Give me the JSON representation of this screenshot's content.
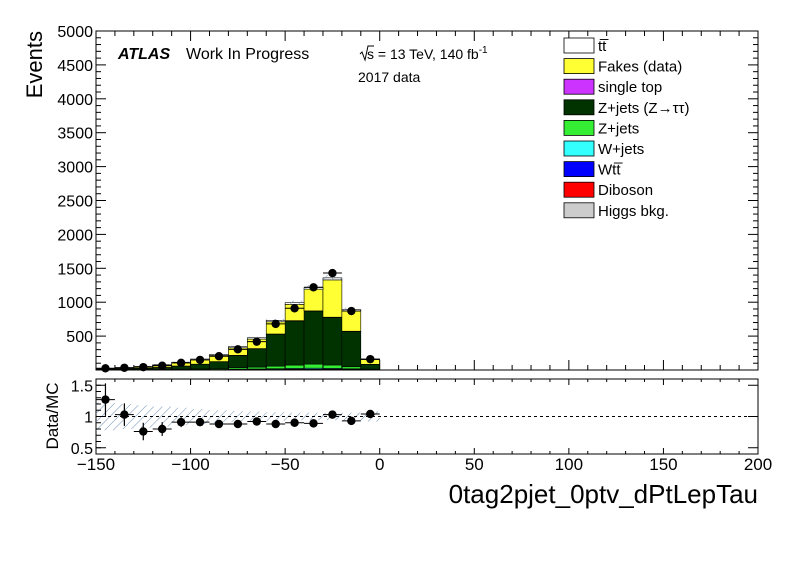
{
  "chart_data": [
    {
      "type": "bar",
      "stacked": true,
      "xlabel": "0tag2pjet_0ptv_dPtLepTau",
      "ylabel": "Events",
      "xlim": [
        -150,
        200
      ],
      "ylim": [
        0,
        5000
      ],
      "x_ticks": [
        "−150",
        "−100",
        "−50",
        "0",
        "50",
        "100",
        "150",
        "200"
      ],
      "x_tick_values": [
        -150,
        -100,
        -50,
        0,
        50,
        100,
        150,
        200
      ],
      "y_ticks": [
        "500",
        "1000",
        "1500",
        "2000",
        "2500",
        "3000",
        "3500",
        "4000",
        "4500",
        "5000"
      ],
      "y_tick_values": [
        500,
        1000,
        1500,
        2000,
        2500,
        3000,
        3500,
        4000,
        4500,
        5000
      ],
      "annotations": {
        "atlas": "ATLAS",
        "status": "Work In Progress",
        "sqrt_s": "s",
        "lumi": " = 13 TeV, 140 fb",
        "lumi_exp": "-1",
        "period": "2017 data"
      },
      "legend_placement": "top-right",
      "legend": [
        {
          "label": "tt̅",
          "color": "#ffffff"
        },
        {
          "label": "Fakes (data)",
          "color": "#ffff33"
        },
        {
          "label": "single top",
          "color": "#cc33ff"
        },
        {
          "label": "Z+jets (Z→ττ)",
          "color": "#003300"
        },
        {
          "label": "Z+jets",
          "color": "#33ee33"
        },
        {
          "label": "W+jets",
          "color": "#33ffff"
        },
        {
          "label": "Wtt̅",
          "color": "#0000ff"
        },
        {
          "label": "Diboson",
          "color": "#ff0000"
        },
        {
          "label": "Higgs bkg.",
          "color": "#cccccc"
        }
      ],
      "bin_edges": [
        -150,
        -140,
        -130,
        -120,
        -110,
        -100,
        -90,
        -80,
        -70,
        -60,
        -50,
        -40,
        -30,
        -20,
        -10,
        0
      ],
      "series": [
        {
          "name": "Higgs bkg.",
          "color": "#cccccc",
          "values": [
            0,
            0,
            0,
            0,
            0,
            0,
            0,
            2,
            2,
            3,
            4,
            5,
            5,
            4,
            1
          ]
        },
        {
          "name": "Diboson",
          "color": "#ff0000",
          "values": [
            1,
            1,
            1,
            1,
            2,
            2,
            3,
            4,
            4,
            5,
            6,
            7,
            6,
            5,
            2
          ]
        },
        {
          "name": "Wtt̅",
          "color": "#0000ff",
          "values": [
            0,
            0,
            0,
            0,
            0,
            0,
            0,
            1,
            1,
            1,
            1,
            1,
            1,
            1,
            0
          ]
        },
        {
          "name": "W+jets",
          "color": "#33ffff",
          "values": [
            1,
            1,
            2,
            2,
            3,
            4,
            5,
            7,
            8,
            10,
            12,
            14,
            12,
            8,
            2
          ]
        },
        {
          "name": "Z+jets",
          "color": "#33ee33",
          "values": [
            2,
            3,
            4,
            6,
            8,
            10,
            14,
            20,
            28,
            38,
            50,
            60,
            50,
            30,
            8
          ]
        },
        {
          "name": "Z+jets (Z→ττ)",
          "color": "#003300",
          "values": [
            8,
            12,
            18,
            28,
            45,
            68,
            100,
            180,
            270,
            470,
            650,
            780,
            700,
            520,
            70
          ]
        },
        {
          "name": "single top",
          "color": "#cc33ff",
          "values": [
            1,
            1,
            1,
            1,
            1,
            2,
            2,
            3,
            3,
            4,
            5,
            5,
            5,
            4,
            1
          ]
        },
        {
          "name": "Fakes (data)",
          "color": "#ffff33",
          "values": [
            7,
            12,
            20,
            32,
            46,
            64,
            90,
            110,
            140,
            180,
            240,
            320,
            550,
            300,
            70
          ]
        },
        {
          "name": "tt̅",
          "color": "#ffffff",
          "values": [
            5,
            6,
            7,
            8,
            10,
            12,
            15,
            18,
            20,
            22,
            25,
            25,
            30,
            20,
            8
          ]
        }
      ],
      "data": {
        "name": "data",
        "x": [
          -145,
          -135,
          -125,
          -115,
          -105,
          -95,
          -85,
          -75,
          -65,
          -55,
          -45,
          -35,
          -25,
          -15,
          -5
        ],
        "y": [
          25,
          33,
          42,
          63,
          106,
          149,
          203,
          305,
          418,
          680,
          910,
          1220,
          1430,
          870,
          160
        ]
      }
    },
    {
      "type": "scatter",
      "ylabel": "Data/MC",
      "xlim": [
        -150,
        200
      ],
      "ylim": [
        0.4,
        1.6
      ],
      "y_ticks": [
        "0.5",
        "1",
        "1.5"
      ],
      "y_tick_values": [
        0.5,
        1.0,
        1.5
      ],
      "reference_line": 1.0,
      "x": [
        -145,
        -135,
        -125,
        -115,
        -105,
        -95,
        -85,
        -75,
        -65,
        -55,
        -45,
        -35,
        -25,
        -15,
        -5
      ],
      "ratio": [
        1.27,
        1.03,
        0.76,
        0.8,
        0.91,
        0.91,
        0.88,
        0.88,
        0.92,
        0.88,
        0.9,
        0.89,
        1.03,
        0.93,
        1.04
      ],
      "ratio_err": [
        0.26,
        0.18,
        0.14,
        0.11,
        0.08,
        0.06,
        0.05,
        0.04,
        0.03,
        0.02,
        0.02,
        0.02,
        0.02,
        0.02,
        0.04
      ],
      "band_halfwidth": [
        0.22,
        0.2,
        0.18,
        0.16,
        0.14,
        0.12,
        0.1,
        0.09,
        0.08,
        0.07,
        0.06,
        0.06,
        0.06,
        0.06,
        0.08
      ]
    }
  ]
}
